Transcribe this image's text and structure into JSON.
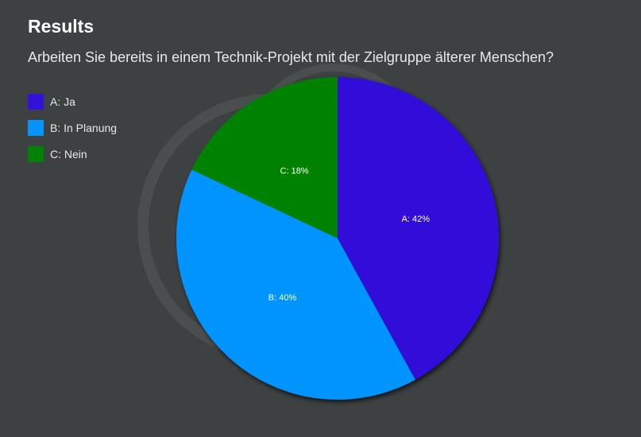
{
  "header": {
    "title": "Results",
    "question": "Arbeiten Sie bereits in einem Technik-Projekt mit der Zielgruppe älterer Menschen?"
  },
  "colors": {
    "background": "#3d4142",
    "A": "#3311d9",
    "B": "#0494ff",
    "C": "#028202"
  },
  "chart_data": {
    "type": "pie",
    "title": "Arbeiten Sie bereits in einem Technik-Projekt mit der Zielgruppe älterer Menschen?",
    "legend_position": "left",
    "slices": [
      {
        "key": "A",
        "label": "A: Ja",
        "data_label": "A: 42%",
        "value": 42,
        "color": "#3311d9"
      },
      {
        "key": "B",
        "label": "B: In Planung",
        "data_label": "B: 40%",
        "value": 40,
        "color": "#0494ff"
      },
      {
        "key": "C",
        "label": "C: Nein",
        "data_label": "C: 18%",
        "value": 18,
        "color": "#028202"
      }
    ]
  }
}
